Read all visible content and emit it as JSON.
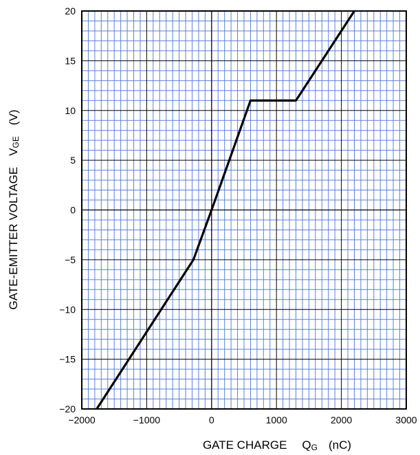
{
  "chart_data": {
    "type": "line",
    "title": "",
    "xlabel": {
      "main": "GATE CHARGE",
      "symbol": "Q",
      "subscript": "G",
      "unit": "(nC)"
    },
    "ylabel": {
      "main": "GATE-EMITTER VOLTAGE",
      "symbol": "V",
      "subscript": "GE",
      "unit": "(V)"
    },
    "xlim": [
      -2000,
      3000
    ],
    "ylim": [
      -20,
      20
    ],
    "x_ticks": [
      -2000,
      -1000,
      0,
      1000,
      2000,
      3000
    ],
    "x_tick_labels": [
      "−2000",
      "−1000",
      "0",
      "1000",
      "2000",
      "3000"
    ],
    "y_ticks": [
      -20,
      -15,
      -10,
      -5,
      0,
      5,
      10,
      15,
      20
    ],
    "y_tick_labels": [
      "−20",
      "−15",
      "−10",
      "−5",
      "0",
      "5",
      "10",
      "15",
      "20"
    ],
    "grid": true,
    "grid_minor_x_step": 100,
    "grid_minor_y_step": 1,
    "series": [
      {
        "x": [
          -1770,
          -280,
          0,
          600,
          1300,
          2200
        ],
        "y": [
          -20,
          -5,
          0,
          11,
          11,
          20
        ]
      }
    ],
    "colors": {
      "grid_minor": "#5b7fdc",
      "axis": "#000000",
      "series": "#000000"
    }
  }
}
